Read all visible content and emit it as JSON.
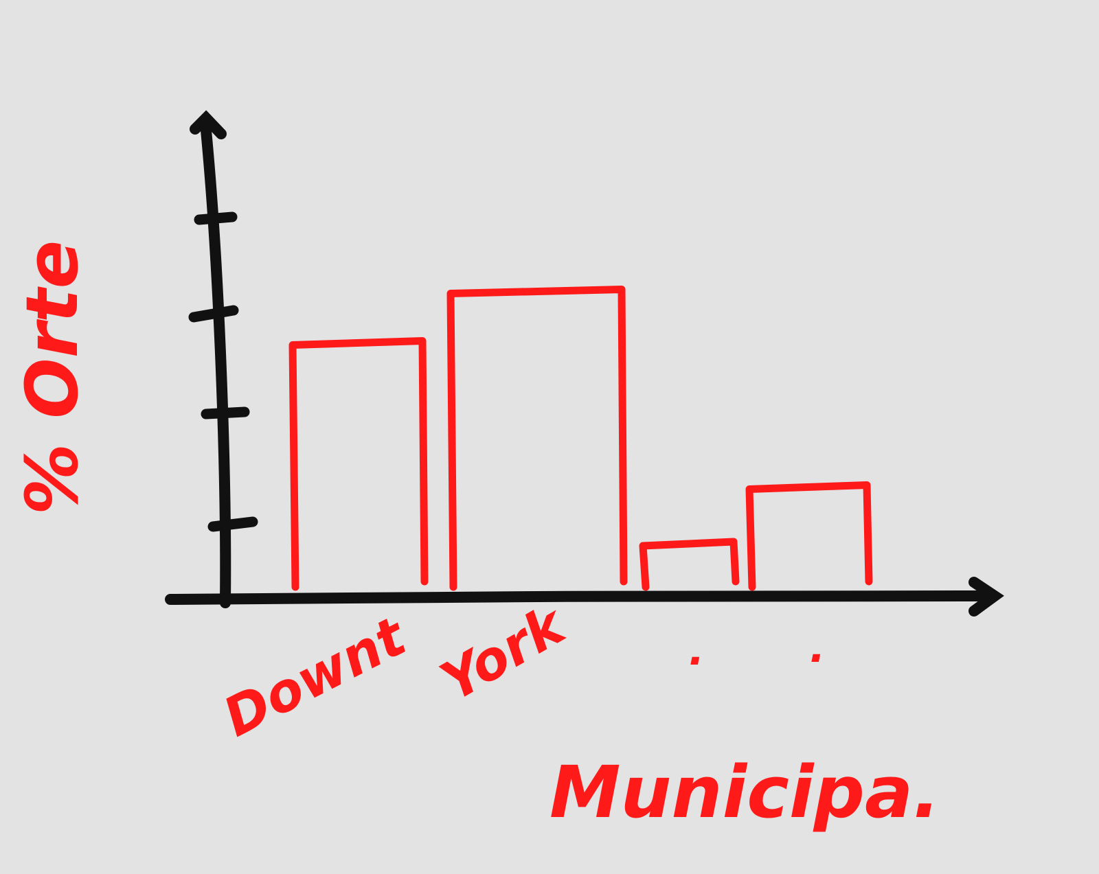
{
  "chart_data": {
    "type": "bar",
    "title": "",
    "xlabel": "Municipa.",
    "ylabel": "% Orte",
    "categories": [
      "Downt",
      "York",
      ".",
      "."
    ],
    "values": [
      2.35,
      2.85,
      0.4,
      0.95
    ],
    "ylim": [
      0,
      4.7
    ],
    "yticks_labeled": false,
    "grid": false,
    "legend": "none",
    "colors": {
      "axis": "#111111",
      "bars": "#ff1a1a",
      "text": "#ff1a1a",
      "background": "#e3e3e3"
    }
  }
}
